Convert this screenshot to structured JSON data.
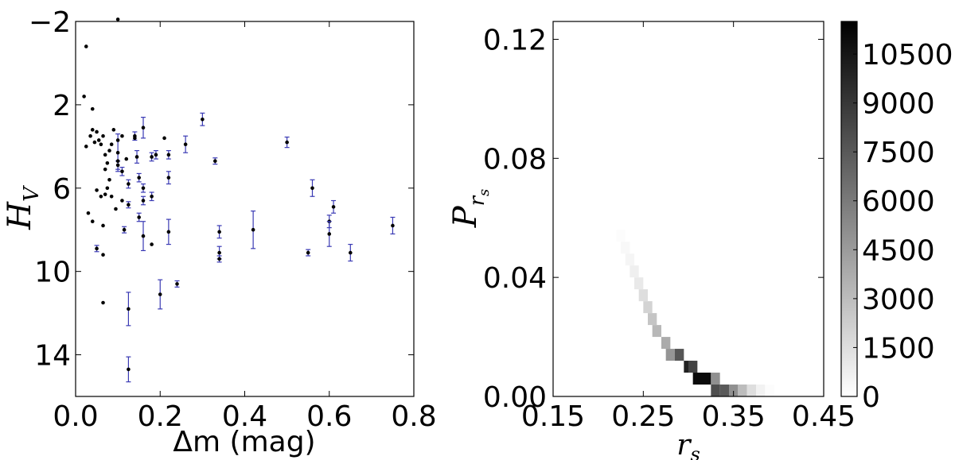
{
  "chart_data": [
    {
      "type": "scatter",
      "title": "",
      "xlabel": "Δm (mag)",
      "ylabel": "H_V",
      "ylabel_main": "H",
      "ylabel_sub": "V",
      "xlim": [
        0.0,
        0.8
      ],
      "ylim": [
        16.0,
        -2.0
      ],
      "y_inverted": true,
      "xticks": [
        0.0,
        0.2,
        0.4,
        0.6,
        0.8
      ],
      "xtick_labels": [
        "0.0",
        "0.2",
        "0.4",
        "0.6",
        "0.8"
      ],
      "yticks": [
        -2,
        2,
        6,
        10,
        14
      ],
      "ytick_labels": [
        "−2",
        "2",
        "6",
        "10",
        "14"
      ],
      "grid": false,
      "point_color": "#000000",
      "errorbar_color": "#3a3ab4",
      "points_no_error": [
        {
          "x": 0.02,
          "y": 1.6
        },
        {
          "x": 0.025,
          "y": -0.8
        },
        {
          "x": 0.04,
          "y": 2.2
        },
        {
          "x": 0.025,
          "y": 4.0
        },
        {
          "x": 0.035,
          "y": 3.5
        },
        {
          "x": 0.045,
          "y": 3.8
        },
        {
          "x": 0.04,
          "y": 3.2
        },
        {
          "x": 0.055,
          "y": 3.7
        },
        {
          "x": 0.05,
          "y": 3.3
        },
        {
          "x": 0.065,
          "y": 3.5
        },
        {
          "x": 0.06,
          "y": 3.9
        },
        {
          "x": 0.07,
          "y": 4.4
        },
        {
          "x": 0.075,
          "y": 4.8
        },
        {
          "x": 0.08,
          "y": 4.2
        },
        {
          "x": 0.085,
          "y": 3.9
        },
        {
          "x": 0.09,
          "y": 3.2
        },
        {
          "x": 0.1,
          "y": 3.7
        },
        {
          "x": 0.1,
          "y": 4.7
        },
        {
          "x": 0.11,
          "y": 3.5
        },
        {
          "x": 0.12,
          "y": 4.6
        },
        {
          "x": 0.14,
          "y": 3.6
        },
        {
          "x": 0.07,
          "y": 5.1
        },
        {
          "x": 0.08,
          "y": 5.6
        },
        {
          "x": 0.05,
          "y": 6.1
        },
        {
          "x": 0.06,
          "y": 6.4
        },
        {
          "x": 0.07,
          "y": 6.3
        },
        {
          "x": 0.075,
          "y": 6.0
        },
        {
          "x": 0.085,
          "y": 6.4
        },
        {
          "x": 0.095,
          "y": 7.0
        },
        {
          "x": 0.03,
          "y": 7.2
        },
        {
          "x": 0.04,
          "y": 7.6
        },
        {
          "x": 0.065,
          "y": 7.8
        },
        {
          "x": 0.065,
          "y": 9.2
        },
        {
          "x": 0.065,
          "y": 11.5
        },
        {
          "x": 0.1,
          "y": -2.1
        },
        {
          "x": 0.21,
          "y": 3.6
        },
        {
          "x": 0.18,
          "y": 8.7
        },
        {
          "x": 0.11,
          "y": 6.6
        }
      ],
      "points_with_error": [
        {
          "x": 0.05,
          "y": 8.9,
          "err": 0.15
        },
        {
          "x": 0.1,
          "y": 4.3,
          "err": 0.9
        },
        {
          "x": 0.11,
          "y": 5.2,
          "err": 0.2
        },
        {
          "x": 0.1,
          "y": 4.9,
          "err": 0.2
        },
        {
          "x": 0.115,
          "y": 8.0,
          "err": 0.15
        },
        {
          "x": 0.125,
          "y": 5.8,
          "err": 0.2
        },
        {
          "x": 0.125,
          "y": 6.8,
          "err": 0.15
        },
        {
          "x": 0.125,
          "y": 11.8,
          "err": 0.8
        },
        {
          "x": 0.125,
          "y": 14.7,
          "err": 0.6
        },
        {
          "x": 0.14,
          "y": 3.5,
          "err": 0.2
        },
        {
          "x": 0.145,
          "y": 4.5,
          "err": 0.3
        },
        {
          "x": 0.15,
          "y": 5.5,
          "err": 0.2
        },
        {
          "x": 0.15,
          "y": 7.4,
          "err": 0.2
        },
        {
          "x": 0.16,
          "y": 3.1,
          "err": 0.5
        },
        {
          "x": 0.16,
          "y": 6.0,
          "err": 0.2
        },
        {
          "x": 0.16,
          "y": 6.6,
          "err": 0.2
        },
        {
          "x": 0.16,
          "y": 8.3,
          "err": 0.7
        },
        {
          "x": 0.18,
          "y": 4.5,
          "err": 0.2
        },
        {
          "x": 0.18,
          "y": 6.4,
          "err": 0.2
        },
        {
          "x": 0.19,
          "y": 4.4,
          "err": 0.2
        },
        {
          "x": 0.2,
          "y": 11.1,
          "err": 0.7
        },
        {
          "x": 0.22,
          "y": 4.4,
          "err": 0.2
        },
        {
          "x": 0.22,
          "y": 5.5,
          "err": 0.3
        },
        {
          "x": 0.22,
          "y": 8.1,
          "err": 0.6
        },
        {
          "x": 0.24,
          "y": 10.6,
          "err": 0.15
        },
        {
          "x": 0.26,
          "y": 3.9,
          "err": 0.4
        },
        {
          "x": 0.3,
          "y": 2.7,
          "err": 0.3
        },
        {
          "x": 0.33,
          "y": 4.7,
          "err": 0.15
        },
        {
          "x": 0.34,
          "y": 8.1,
          "err": 0.3
        },
        {
          "x": 0.34,
          "y": 9.1,
          "err": 0.3
        },
        {
          "x": 0.34,
          "y": 9.4,
          "err": 0.15
        },
        {
          "x": 0.42,
          "y": 8.0,
          "err": 0.9
        },
        {
          "x": 0.5,
          "y": 3.8,
          "err": 0.25
        },
        {
          "x": 0.55,
          "y": 9.1,
          "err": 0.15
        },
        {
          "x": 0.56,
          "y": 6.0,
          "err": 0.4
        },
        {
          "x": 0.6,
          "y": 7.6,
          "err": 0.3
        },
        {
          "x": 0.6,
          "y": 8.2,
          "err": 0.6
        },
        {
          "x": 0.61,
          "y": 6.9,
          "err": 0.3
        },
        {
          "x": 0.65,
          "y": 9.1,
          "err": 0.4
        },
        {
          "x": 0.75,
          "y": 7.8,
          "err": 0.4
        }
      ]
    },
    {
      "type": "heatmap",
      "title": "",
      "xlabel": "r_s",
      "xlabel_main": "r",
      "xlabel_sub": "s",
      "ylabel": "P_rs",
      "ylabel_main": "P",
      "ylabel_sub": "r",
      "ylabel_subsub": "s",
      "xlim": [
        0.15,
        0.45
      ],
      "ylim": [
        0.0,
        0.126
      ],
      "xticks": [
        0.15,
        0.25,
        0.35,
        0.45
      ],
      "xtick_labels": [
        "0.15",
        "0.25",
        "0.35",
        "0.45"
      ],
      "yticks": [
        0.0,
        0.04,
        0.08,
        0.12
      ],
      "ytick_labels": [
        "0.00",
        "0.04",
        "0.08",
        "0.12"
      ],
      "cell_width": 0.01,
      "cell_height": 0.004,
      "cells": [
        {
          "x": 0.22,
          "y": 0.052,
          "v": 150
        },
        {
          "x": 0.225,
          "y": 0.048,
          "v": 300
        },
        {
          "x": 0.23,
          "y": 0.044,
          "v": 450
        },
        {
          "x": 0.235,
          "y": 0.04,
          "v": 700
        },
        {
          "x": 0.24,
          "y": 0.036,
          "v": 1000
        },
        {
          "x": 0.245,
          "y": 0.032,
          "v": 1500
        },
        {
          "x": 0.25,
          "y": 0.028,
          "v": 2000
        },
        {
          "x": 0.255,
          "y": 0.024,
          "v": 2600
        },
        {
          "x": 0.26,
          "y": 0.02,
          "v": 3200
        },
        {
          "x": 0.27,
          "y": 0.016,
          "v": 3800
        },
        {
          "x": 0.275,
          "y": 0.012,
          "v": 4800
        },
        {
          "x": 0.285,
          "y": 0.012,
          "v": 7600
        },
        {
          "x": 0.295,
          "y": 0.008,
          "v": 10000
        },
        {
          "x": 0.3,
          "y": 0.008,
          "v": 8500
        },
        {
          "x": 0.305,
          "y": 0.004,
          "v": 11000
        },
        {
          "x": 0.315,
          "y": 0.004,
          "v": 11000
        },
        {
          "x": 0.325,
          "y": 0.004,
          "v": 5000
        },
        {
          "x": 0.325,
          "y": 0.0,
          "v": 8000
        },
        {
          "x": 0.335,
          "y": 0.0,
          "v": 7500
        },
        {
          "x": 0.345,
          "y": 0.0,
          "v": 5000
        },
        {
          "x": 0.355,
          "y": 0.0,
          "v": 3000
        },
        {
          "x": 0.365,
          "y": 0.0,
          "v": 1500
        },
        {
          "x": 0.375,
          "y": 0.0,
          "v": 600
        },
        {
          "x": 0.385,
          "y": 0.0,
          "v": 150
        }
      ],
      "colorbar": {
        "vmin": 0,
        "vmax": 11500,
        "ticks": [
          0,
          1500,
          3000,
          4500,
          6000,
          7500,
          9000,
          10500
        ],
        "tick_labels": [
          "0",
          "1500",
          "3000",
          "4500",
          "6000",
          "7500",
          "9000",
          "10500"
        ],
        "cmap_low": "#ffffff",
        "cmap_high": "#000000"
      }
    }
  ]
}
